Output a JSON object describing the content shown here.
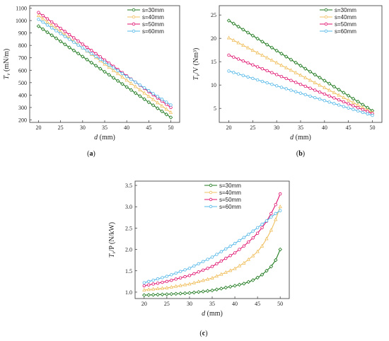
{
  "chart_data": [
    {
      "id": "a",
      "type": "line",
      "panel_label": "(a)",
      "xlabel": "d (mm)",
      "ylabel": "Tv (mN/m)",
      "xlim": [
        18,
        52
      ],
      "ylim": [
        180,
        1120
      ],
      "xticks": [
        20,
        25,
        30,
        35,
        40,
        45,
        50
      ],
      "yticks": [
        200,
        300,
        400,
        500,
        600,
        700,
        800,
        900,
        1000,
        1100
      ],
      "legend_position": "top-right",
      "series": [
        {
          "name": "s=30mm",
          "color": "#1f7a1f",
          "x": [
            20,
            50
          ],
          "y": [
            955,
            220
          ]
        },
        {
          "name": "s=40mm",
          "color": "#f0c060",
          "x": [
            20,
            50
          ],
          "y": [
            1040,
            260
          ]
        },
        {
          "name": "s=50mm",
          "color": "#e0106e",
          "x": [
            20,
            50
          ],
          "y": [
            1065,
            300
          ]
        },
        {
          "name": "s=60mm",
          "color": "#55b8e8",
          "x": [
            20,
            50
          ],
          "y": [
            1010,
            320
          ]
        }
      ]
    },
    {
      "id": "b",
      "type": "line",
      "panel_label": "(b)",
      "xlabel": "d (mm)",
      "ylabel": "Tv/V (Nm³)",
      "xlim": [
        18,
        52
      ],
      "ylim": [
        2,
        27
      ],
      "xticks": [
        20,
        25,
        30,
        35,
        40,
        45,
        50
      ],
      "yticks": [
        5,
        10,
        15,
        20,
        25
      ],
      "legend_position": "top-right",
      "series": [
        {
          "name": "s=30mm",
          "color": "#1f7a1f",
          "x": [
            20,
            50
          ],
          "y": [
            23.8,
            4.5
          ]
        },
        {
          "name": "s=40mm",
          "color": "#f0c060",
          "x": [
            20,
            50
          ],
          "y": [
            20.1,
            4.1
          ]
        },
        {
          "name": "s=50mm",
          "color": "#e0106e",
          "x": [
            20,
            50
          ],
          "y": [
            16.4,
            3.9
          ]
        },
        {
          "name": "s=60mm",
          "color": "#55b8e8",
          "x": [
            20,
            50
          ],
          "y": [
            13.0,
            3.5
          ]
        }
      ]
    },
    {
      "id": "c",
      "type": "line",
      "panel_label": "(c)",
      "xlabel": "d (mm)",
      "ylabel": "Tv/P (N/kW)",
      "xlim": [
        18,
        52
      ],
      "ylim": [
        0.85,
        3.6
      ],
      "xticks": [
        20,
        25,
        30,
        35,
        40,
        45,
        50
      ],
      "yticks": [
        1.0,
        1.5,
        2.0,
        2.5,
        3.0,
        3.5
      ],
      "legend_position": "top-left",
      "series": [
        {
          "name": "s=30mm",
          "color": "#1f7a1f",
          "x": [
            20,
            25,
            30,
            35,
            40,
            42,
            44,
            45,
            46,
            47,
            48,
            49,
            50
          ],
          "y": [
            0.93,
            0.95,
            0.98,
            1.04,
            1.15,
            1.2,
            1.28,
            1.34,
            1.41,
            1.5,
            1.6,
            1.75,
            2.0
          ]
        },
        {
          "name": "s=40mm",
          "color": "#f0c060",
          "x": [
            20,
            25,
            30,
            35,
            40,
            42,
            44,
            45,
            46,
            47,
            48,
            49,
            50
          ],
          "y": [
            1.05,
            1.1,
            1.19,
            1.33,
            1.55,
            1.68,
            1.85,
            1.95,
            2.08,
            2.25,
            2.45,
            2.7,
            3.0
          ]
        },
        {
          "name": "s=50mm",
          "color": "#e0106e",
          "x": [
            20,
            25,
            30,
            35,
            40,
            42,
            44,
            45,
            46,
            47,
            48,
            49,
            50
          ],
          "y": [
            1.15,
            1.25,
            1.39,
            1.6,
            1.92,
            2.08,
            2.27,
            2.38,
            2.51,
            2.66,
            2.84,
            3.05,
            3.3
          ]
        },
        {
          "name": "s=60mm",
          "color": "#55b8e8",
          "x": [
            20,
            25,
            30,
            35,
            40,
            42,
            44,
            45,
            46,
            47,
            48,
            49,
            50
          ],
          "y": [
            1.22,
            1.37,
            1.56,
            1.82,
            2.14,
            2.28,
            2.43,
            2.51,
            2.59,
            2.67,
            2.76,
            2.84,
            2.91
          ]
        }
      ]
    }
  ]
}
